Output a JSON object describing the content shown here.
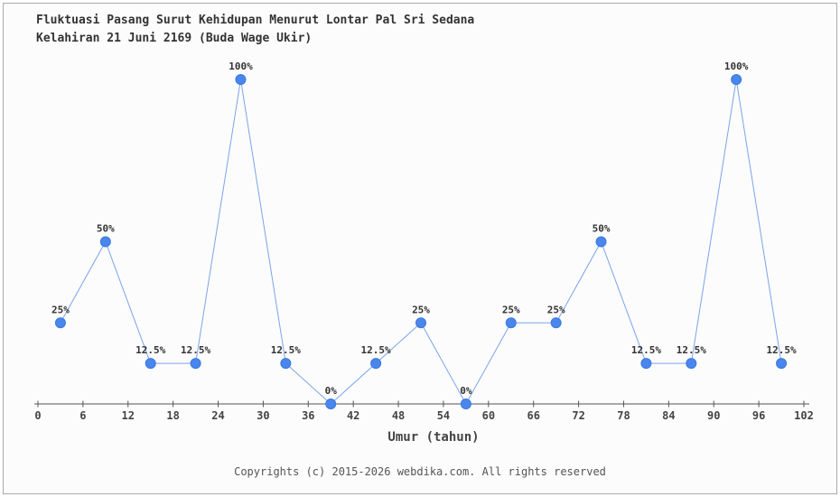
{
  "title": {
    "line1": "Fluktuasi Pasang Surut Kehidupan Menurut Lontar Pal Sri Sedana",
    "line2": "Kelahiran 21 Juni 2169 (Buda Wage Ukir)"
  },
  "footer": "Copyrights (c) 2015-2026 webdika.com. All rights reserved",
  "chart_data": {
    "type": "line",
    "title": "Fluktuasi Pasang Surut Kehidupan Menurut Lontar Pal Sri Sedana Kelahiran 21 Juni 2169 (Buda Wage Ukir)",
    "xlabel": "Umur (tahun)",
    "ylabel": "",
    "x": [
      3,
      9,
      15,
      21,
      27,
      33,
      39,
      45,
      51,
      57,
      63,
      69,
      75,
      81,
      87,
      93,
      99
    ],
    "values": [
      25,
      50,
      12.5,
      12.5,
      100,
      12.5,
      0,
      12.5,
      25,
      0,
      25,
      25,
      50,
      12.5,
      12.5,
      100,
      12.5
    ],
    "point_labels": [
      "25%",
      "50%",
      "12.5%",
      "12.5%",
      "100%",
      "12.5%",
      "0%",
      "12.5%",
      "25%",
      "0%",
      "25%",
      "25%",
      "50%",
      "12.5%",
      "12.5%",
      "100%",
      "12.5%"
    ],
    "x_ticks": [
      0,
      6,
      12,
      18,
      24,
      30,
      36,
      42,
      48,
      54,
      60,
      66,
      72,
      78,
      84,
      90,
      96,
      102
    ],
    "xlim": [
      0,
      102
    ],
    "ylim": [
      0,
      100
    ],
    "grid": "off",
    "legend": "none",
    "colors": {
      "marker_fill": "#4a86ec",
      "marker_stroke": "#3a78e0",
      "line": "#7ba4e9",
      "axis": "#555555",
      "tick_text": "#444444",
      "label_text": "#333333"
    }
  }
}
